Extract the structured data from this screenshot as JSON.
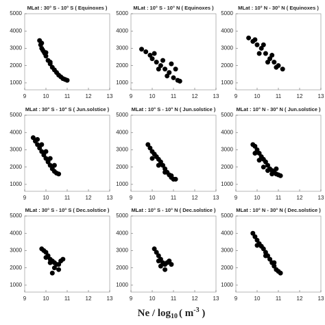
{
  "chart_data": [
    {
      "type": "scatter",
      "title": "MLat : 30° S - 10° S ( Equinoxes )",
      "color": "#000000",
      "xlim": [
        9,
        13
      ],
      "ylim": [
        600,
        5000
      ],
      "xticks": [
        9,
        10,
        11,
        12,
        13
      ],
      "yticks": [
        1000,
        2000,
        3000,
        4000,
        5000
      ],
      "x": [
        9.7,
        9.75,
        9.8,
        9.85,
        9.9,
        9.95,
        10.0,
        10.1,
        10.2,
        10.3,
        10.4,
        10.5,
        10.6,
        10.7,
        10.8,
        10.9,
        11.0,
        9.8,
        10.0,
        10.2
      ],
      "y": [
        3450,
        3200,
        3000,
        2900,
        2800,
        2700,
        2550,
        2300,
        2100,
        1900,
        1750,
        1600,
        1450,
        1350,
        1250,
        1200,
        1150,
        3300,
        2750,
        2200
      ]
    },
    {
      "type": "scatter",
      "title": "MLat : 10° S - 10° N ( Equinoxes )",
      "color": "#000000",
      "xlim": [
        9,
        13
      ],
      "ylim": [
        600,
        5000
      ],
      "xticks": [
        9,
        10,
        11,
        12,
        13
      ],
      "yticks": [
        1000,
        2000,
        3000,
        4000,
        5000
      ],
      "x": [
        9.5,
        9.7,
        9.9,
        10.0,
        10.2,
        10.4,
        10.6,
        10.8,
        11.0,
        11.2,
        11.3,
        10.1,
        10.5,
        10.9,
        11.1,
        10.7,
        10.3
      ],
      "y": [
        2950,
        2800,
        2600,
        2400,
        2200,
        2000,
        1800,
        1600,
        1300,
        1150,
        1100,
        2700,
        2300,
        2100,
        1800,
        1400,
        1800
      ]
    },
    {
      "type": "scatter",
      "title": "MLat : 10° N - 30° N ( Equinoxes )",
      "color": "#000000",
      "xlim": [
        9,
        13
      ],
      "ylim": [
        600,
        5000
      ],
      "xticks": [
        9,
        10,
        11,
        12,
        13
      ],
      "yticks": [
        1000,
        2000,
        3000,
        4000,
        5000
      ],
      "x": [
        9.6,
        9.8,
        10.0,
        10.2,
        10.4,
        10.6,
        10.8,
        11.0,
        11.2,
        9.9,
        10.3,
        10.7,
        10.1,
        10.5,
        10.9
      ],
      "y": [
        3600,
        3400,
        3200,
        3000,
        2700,
        2400,
        2200,
        2000,
        1800,
        3500,
        3200,
        2600,
        2700,
        2200,
        1900
      ]
    },
    {
      "type": "scatter",
      "title": "MLat : 30° S - 10° S ( Jun.solstice )",
      "color": "#000000",
      "xlim": [
        9,
        13
      ],
      "ylim": [
        600,
        5000
      ],
      "xticks": [
        9,
        10,
        11,
        12,
        13
      ],
      "yticks": [
        1000,
        2000,
        3000,
        4000,
        5000
      ],
      "x": [
        9.4,
        9.5,
        9.6,
        9.7,
        9.8,
        9.9,
        10.0,
        10.1,
        10.2,
        10.3,
        10.4,
        10.5,
        10.6,
        9.6,
        9.8,
        10.0,
        10.2,
        10.4
      ],
      "y": [
        3700,
        3500,
        3300,
        3100,
        2900,
        2700,
        2500,
        2300,
        2100,
        1900,
        1750,
        1650,
        1600,
        3600,
        3300,
        2900,
        2500,
        2100
      ]
    },
    {
      "type": "scatter",
      "title": "MLat : 10° S - 10° N ( Jun.solstice )",
      "color": "#000000",
      "xlim": [
        9,
        13
      ],
      "ylim": [
        600,
        5000
      ],
      "xticks": [
        9,
        10,
        11,
        12,
        13
      ],
      "yticks": [
        1000,
        2000,
        3000,
        4000,
        5000
      ],
      "x": [
        9.8,
        9.9,
        10.0,
        10.1,
        10.2,
        10.3,
        10.4,
        10.5,
        10.6,
        10.7,
        10.8,
        10.9,
        11.0,
        11.1,
        10.0,
        10.3,
        10.6,
        10.9
      ],
      "y": [
        3300,
        3100,
        2900,
        2750,
        2600,
        2450,
        2300,
        2100,
        1900,
        1700,
        1550,
        1400,
        1300,
        1300,
        2500,
        2100,
        1700,
        1500
      ]
    },
    {
      "type": "scatter",
      "title": "MLat : 10° N - 30° N ( Jun.solstice )",
      "color": "#000000",
      "xlim": [
        9,
        13
      ],
      "ylim": [
        600,
        5000
      ],
      "xticks": [
        9,
        10,
        11,
        12,
        13
      ],
      "yticks": [
        1000,
        2000,
        3000,
        4000,
        5000
      ],
      "x": [
        9.8,
        9.9,
        10.0,
        10.1,
        10.2,
        10.3,
        10.4,
        10.5,
        10.6,
        10.7,
        10.8,
        10.9,
        11.0,
        11.1,
        9.9,
        10.1,
        10.3,
        10.5,
        10.7,
        10.9
      ],
      "y": [
        3300,
        3200,
        3000,
        2800,
        2600,
        2450,
        2300,
        2100,
        1900,
        1800,
        1700,
        1600,
        1550,
        1500,
        2800,
        2400,
        2000,
        1800,
        1600,
        1900
      ]
    },
    {
      "type": "scatter",
      "title": "MLat : 30° S - 10° S ( Dec.solstice )",
      "color": "#000000",
      "xlim": [
        9,
        13
      ],
      "ylim": [
        600,
        5000
      ],
      "xticks": [
        9,
        10,
        11,
        12,
        13
      ],
      "yticks": [
        1000,
        2000,
        3000,
        4000,
        5000
      ],
      "x": [
        9.8,
        9.9,
        10.0,
        10.1,
        10.2,
        10.3,
        10.4,
        10.5,
        10.6,
        10.7,
        10.8,
        10.0,
        10.2,
        10.4,
        10.6,
        10.3
      ],
      "y": [
        3100,
        3000,
        2900,
        2700,
        2500,
        2400,
        2300,
        2200,
        2200,
        2400,
        2500,
        2600,
        2300,
        2000,
        1900,
        1700
      ]
    },
    {
      "type": "scatter",
      "title": "MLat : 10° S - 10° N ( Dec.solstice )",
      "color": "#000000",
      "xlim": [
        9,
        13
      ],
      "ylim": [
        600,
        5000
      ],
      "xticks": [
        9,
        10,
        11,
        12,
        13
      ],
      "yticks": [
        1000,
        2000,
        3000,
        4000,
        5000
      ],
      "x": [
        10.1,
        10.2,
        10.3,
        10.4,
        10.5,
        10.6,
        10.7,
        10.8,
        10.9,
        10.4,
        10.6,
        10.3
      ],
      "y": [
        3100,
        2900,
        2700,
        2500,
        2300,
        2200,
        2300,
        2400,
        2200,
        2100,
        1900,
        2400
      ]
    },
    {
      "type": "scatter",
      "title": "MLat : 10° N - 30° N ( Dec.solstice )",
      "color": "#000000",
      "xlim": [
        9,
        13
      ],
      "ylim": [
        600,
        5000
      ],
      "xticks": [
        9,
        10,
        11,
        12,
        13
      ],
      "yticks": [
        1000,
        2000,
        3000,
        4000,
        5000
      ],
      "x": [
        9.8,
        9.9,
        10.0,
        10.1,
        10.2,
        10.3,
        10.4,
        10.5,
        10.6,
        10.7,
        10.8,
        10.9,
        11.0,
        11.1,
        10.0,
        10.4,
        10.8
      ],
      "y": [
        4000,
        3800,
        3600,
        3400,
        3250,
        3100,
        2900,
        2700,
        2500,
        2300,
        2100,
        1900,
        1800,
        1700,
        3300,
        2700,
        2300
      ]
    }
  ],
  "xlabel_parts": [
    "Ne / log",
    "10",
    "( m",
    "-3",
    " )"
  ]
}
